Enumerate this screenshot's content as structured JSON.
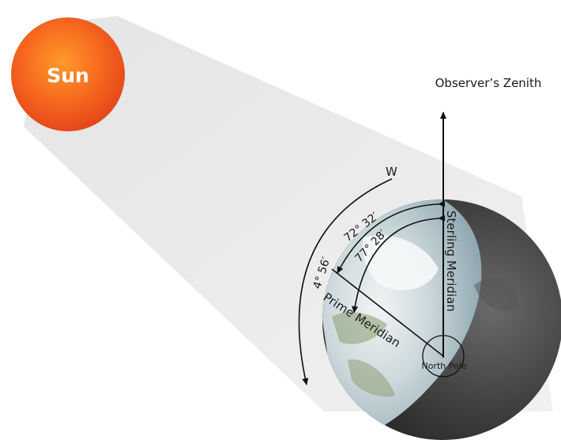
{
  "sun": {
    "label": "Sun",
    "color": "#f25a1e"
  },
  "zenith": {
    "label": "Observer’s Zenith"
  },
  "directions": {
    "west": "W"
  },
  "angles": {
    "a1": "72° 32′",
    "a2": "77° 28′",
    "a3": "4° 56′"
  },
  "meridians": {
    "sterling": "Sterling Meridian",
    "prime": "Prime Meridian"
  },
  "pole": {
    "label": "North Pole"
  },
  "colors": {
    "beam": "#e9e9e9",
    "earth_day": "#a9bfc9",
    "earth_night": "#3b3b3b",
    "arrow": "#111111"
  }
}
